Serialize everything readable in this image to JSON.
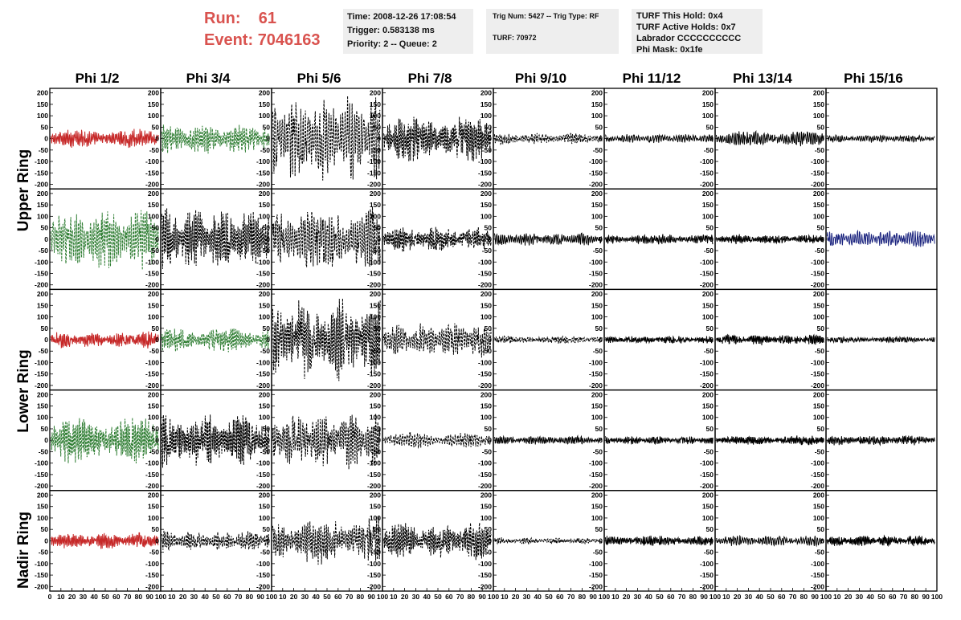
{
  "run_label": "Run:",
  "run_value": "61",
  "event_label": "Event:",
  "event_value": "7046163",
  "info_time": {
    "time": "Time: 2008-12-26 17:08:54",
    "trigger": "Trigger: 0.583138 ms",
    "priority": "Priority: 2 -- Queue: 2"
  },
  "info_trig": {
    "trig": "Trig Num: 5427 -- Trig Type: RF",
    "turf": "TURF: 70972"
  },
  "info_turf": {
    "hold": "TURF This Hold: 0x4",
    "active": "TURF Active Holds: 0x7",
    "labrador": "Labrador CCCCCCCCCC",
    "phimask": "Phi Mask: 0x1fe"
  },
  "columns": [
    "Phi 1/2",
    "Phi 3/4",
    "Phi 5/6",
    "Phi 7/8",
    "Phi 9/10",
    "Phi 11/12",
    "Phi 13/14",
    "Phi 15/16"
  ],
  "ring_labels": [
    "Upper Ring",
    "Lower Ring",
    "Nadir Ring"
  ],
  "colors": {
    "red": "#c62828",
    "green": "#2e7d32",
    "blue": "#1a237e",
    "black": "#000000"
  },
  "chart_data": {
    "type": "line",
    "ylim": [
      -220,
      220
    ],
    "xlim": [
      0,
      100
    ],
    "y_ticks": [
      200,
      150,
      100,
      50,
      0,
      -50,
      -100,
      -150,
      -200
    ],
    "x_ticks": [
      0,
      10,
      20,
      30,
      40,
      50,
      60,
      70,
      80,
      90,
      100
    ],
    "panels_rows": 5,
    "panels_cols": 8,
    "panel_styles": [
      [
        "red",
        "green",
        "black-dash",
        "black-dash",
        "black-dash",
        "black",
        "black",
        "black"
      ],
      [
        "green",
        "black-dash",
        "black-dash",
        "black-dash",
        "black",
        "black",
        "black",
        "blue"
      ],
      [
        "red",
        "green",
        "black-dash",
        "black-dash",
        "black-dash",
        "black",
        "black",
        "black"
      ],
      [
        "green",
        "black-dash",
        "black-dash",
        "black-dash",
        "black",
        "black",
        "black",
        "black"
      ],
      [
        "red",
        "black-dash",
        "black-dash",
        "black-dash",
        "black-dash",
        "black",
        "black",
        "black"
      ]
    ],
    "panel_amplitudes": [
      [
        45,
        70,
        200,
        110,
        25,
        20,
        35,
        18
      ],
      [
        140,
        140,
        150,
        60,
        30,
        25,
        22,
        40
      ],
      [
        40,
        55,
        190,
        80,
        18,
        18,
        25,
        15
      ],
      [
        110,
        130,
        130,
        35,
        20,
        20,
        22,
        25
      ],
      [
        40,
        45,
        110,
        85,
        15,
        25,
        25,
        25
      ]
    ]
  }
}
